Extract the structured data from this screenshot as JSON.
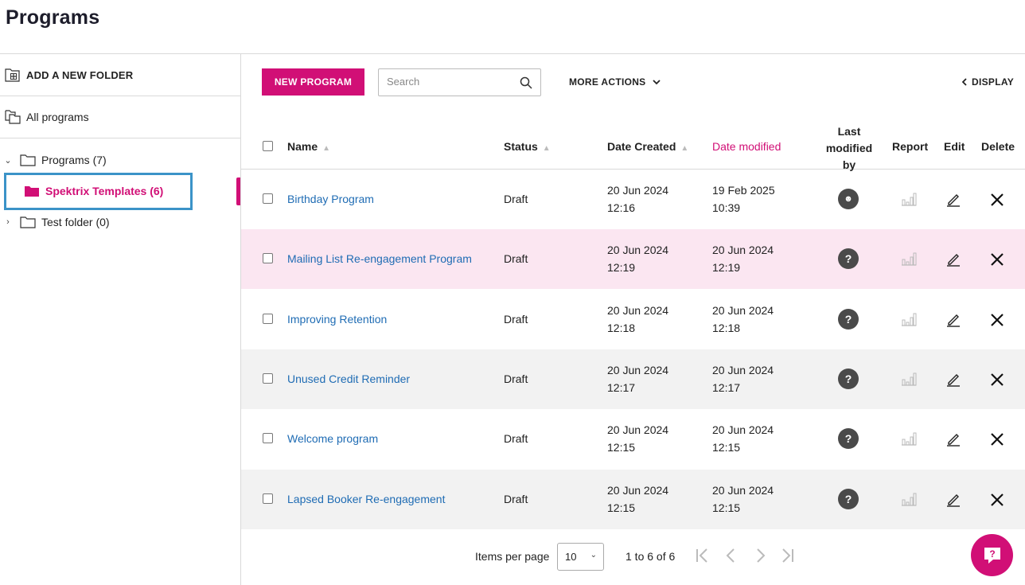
{
  "page": {
    "title": "Programs"
  },
  "sidebar": {
    "add_folder_label": "ADD A NEW FOLDER",
    "all_programs_label": "All programs",
    "tree": [
      {
        "label": "Programs (7)",
        "expanded": true
      },
      {
        "label": "Spektrix Templates (6)",
        "selected": true
      },
      {
        "label": "Test folder (0)",
        "expanded": false
      }
    ]
  },
  "toolbar": {
    "new_program_label": "NEW PROGRAM",
    "search_placeholder": "Search",
    "more_actions_label": "MORE ACTIONS",
    "display_label": "DISPLAY"
  },
  "table": {
    "columns": {
      "name": "Name",
      "status": "Status",
      "date_created": "Date Created",
      "date_modified": "Date modified",
      "last_modified_by_line1": "Last",
      "last_modified_by_line2": "modified by",
      "report": "Report",
      "edit": "Edit",
      "delete": "Delete"
    },
    "rows": [
      {
        "name": "Birthday Program",
        "status": "Draft",
        "created_date": "20 Jun 2024",
        "created_time": "12:16",
        "modified_date": "19 Feb 2025",
        "modified_time": "10:39",
        "modified_by": "user-avatar"
      },
      {
        "name": "Mailing List Re-engagement Program",
        "status": "Draft",
        "created_date": "20 Jun 2024",
        "created_time": "12:19",
        "modified_date": "20 Jun 2024",
        "modified_time": "12:19",
        "modified_by": "?"
      },
      {
        "name": "Improving Retention",
        "status": "Draft",
        "created_date": "20 Jun 2024",
        "created_time": "12:18",
        "modified_date": "20 Jun 2024",
        "modified_time": "12:18",
        "modified_by": "?"
      },
      {
        "name": "Unused Credit Reminder",
        "status": "Draft",
        "created_date": "20 Jun 2024",
        "created_time": "12:17",
        "modified_date": "20 Jun 2024",
        "modified_time": "12:17",
        "modified_by": "?"
      },
      {
        "name": "Welcome program",
        "status": "Draft",
        "created_date": "20 Jun 2024",
        "created_time": "12:15",
        "modified_date": "20 Jun 2024",
        "modified_time": "12:15",
        "modified_by": "?"
      },
      {
        "name": "Lapsed Booker Re-engagement",
        "status": "Draft",
        "created_date": "20 Jun 2024",
        "created_time": "12:15",
        "modified_date": "20 Jun 2024",
        "modified_time": "12:15",
        "modified_by": "?"
      }
    ]
  },
  "footer": {
    "items_per_page_label": "Items per page",
    "items_per_page_value": "10",
    "range_text": "1 to 6 of 6"
  },
  "colors": {
    "accent": "#d10f76",
    "link": "#1f6cb4",
    "selection_outline": "#3b93c8"
  }
}
